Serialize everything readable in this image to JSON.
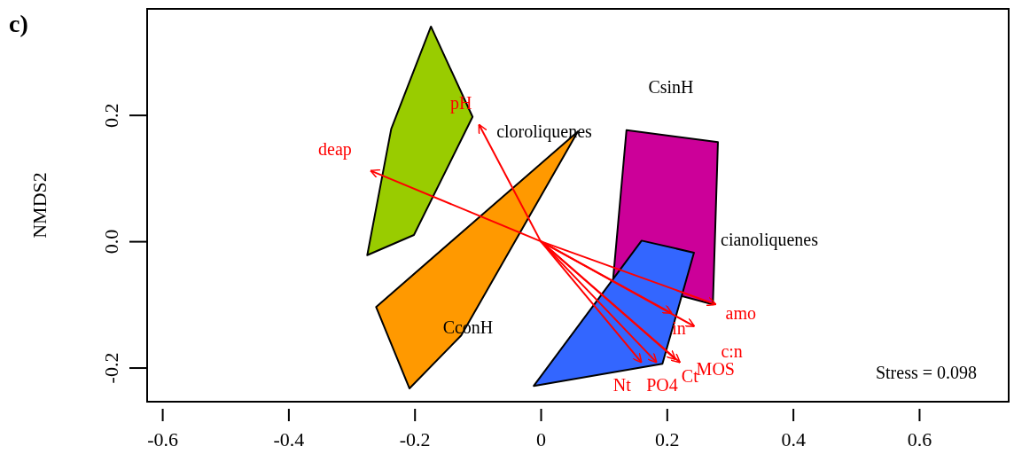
{
  "chart_data": {
    "type": "line",
    "title": "c)",
    "ylabel": "NMDS2",
    "xlim": [
      -0.624,
      0.742
    ],
    "ylim": [
      -0.254,
      0.368
    ],
    "xticks": [
      -0.6,
      -0.4,
      -0.2,
      0.0,
      0.2,
      0.4,
      0.6
    ],
    "yticks": [
      {
        "value": -0.2,
        "label": "-0.2"
      },
      {
        "value": 0,
        "label": "0.0"
      },
      {
        "value": 0.2,
        "label": "0.2"
      }
    ],
    "series": [
      {
        "type": "area",
        "color": "#99cc00",
        "x": [
          -0.174,
          -0.108,
          -0.201,
          -0.275,
          -0.237
        ],
        "values": [
          0.34,
          0.197,
          0.01,
          -0.022,
          0.178
        ]
      },
      {
        "type": "area",
        "color": "#ff9900",
        "x": [
          0.059,
          -0.126,
          -0.208,
          -0.261
        ],
        "values": [
          0.174,
          -0.149,
          -0.233,
          -0.104
        ]
      },
      {
        "type": "area",
        "color": "#cc0099",
        "x": [
          0.136,
          0.281,
          0.273,
          0.115
        ],
        "values": [
          0.176,
          0.157,
          -0.1,
          -0.058
        ]
      },
      {
        "type": "area",
        "color": "#3366ff",
        "x": [
          0.16,
          0.243,
          0.193,
          -0.011
        ],
        "values": [
          0.001,
          -0.018,
          -0.194,
          -0.229
        ]
      },
      {
        "name": "pH",
        "color": "#ff0000",
        "x": [
          0,
          -0.098
        ],
        "values": [
          0,
          0.185
        ]
      },
      {
        "name": "deap",
        "color": "#ff0000",
        "x": [
          0,
          -0.27
        ],
        "values": [
          0,
          0.112
        ]
      },
      {
        "name": "amo",
        "color": "#ff0000",
        "x": [
          0,
          0.278
        ],
        "values": [
          0,
          -0.1
        ]
      },
      {
        "name": "in",
        "color": "#ff0000",
        "x": [
          0,
          0.208
        ],
        "values": [
          0,
          -0.114
        ]
      },
      {
        "name": "c:n",
        "color": "#ff0000",
        "x": [
          0,
          0.244
        ],
        "values": [
          0,
          -0.135
        ]
      },
      {
        "name": "MOS",
        "color": "#ff0000",
        "x": [
          0,
          0.221
        ],
        "values": [
          0,
          -0.192
        ]
      },
      {
        "name": "Ct",
        "color": "#ff0000",
        "x": [
          0,
          0.214
        ],
        "values": [
          0,
          -0.187
        ]
      },
      {
        "name": "Nt",
        "color": "#ff0000",
        "x": [
          0,
          0.16
        ],
        "values": [
          0,
          -0.192
        ]
      },
      {
        "name": "PO4",
        "color": "#ff0000",
        "x": [
          0,
          0.184
        ],
        "values": [
          0,
          -0.192
        ]
      }
    ],
    "annotations": [
      "CsinH",
      "cloroliquenes",
      "cianoliquenes",
      "CconH",
      "Stress = 0.098"
    ]
  }
}
